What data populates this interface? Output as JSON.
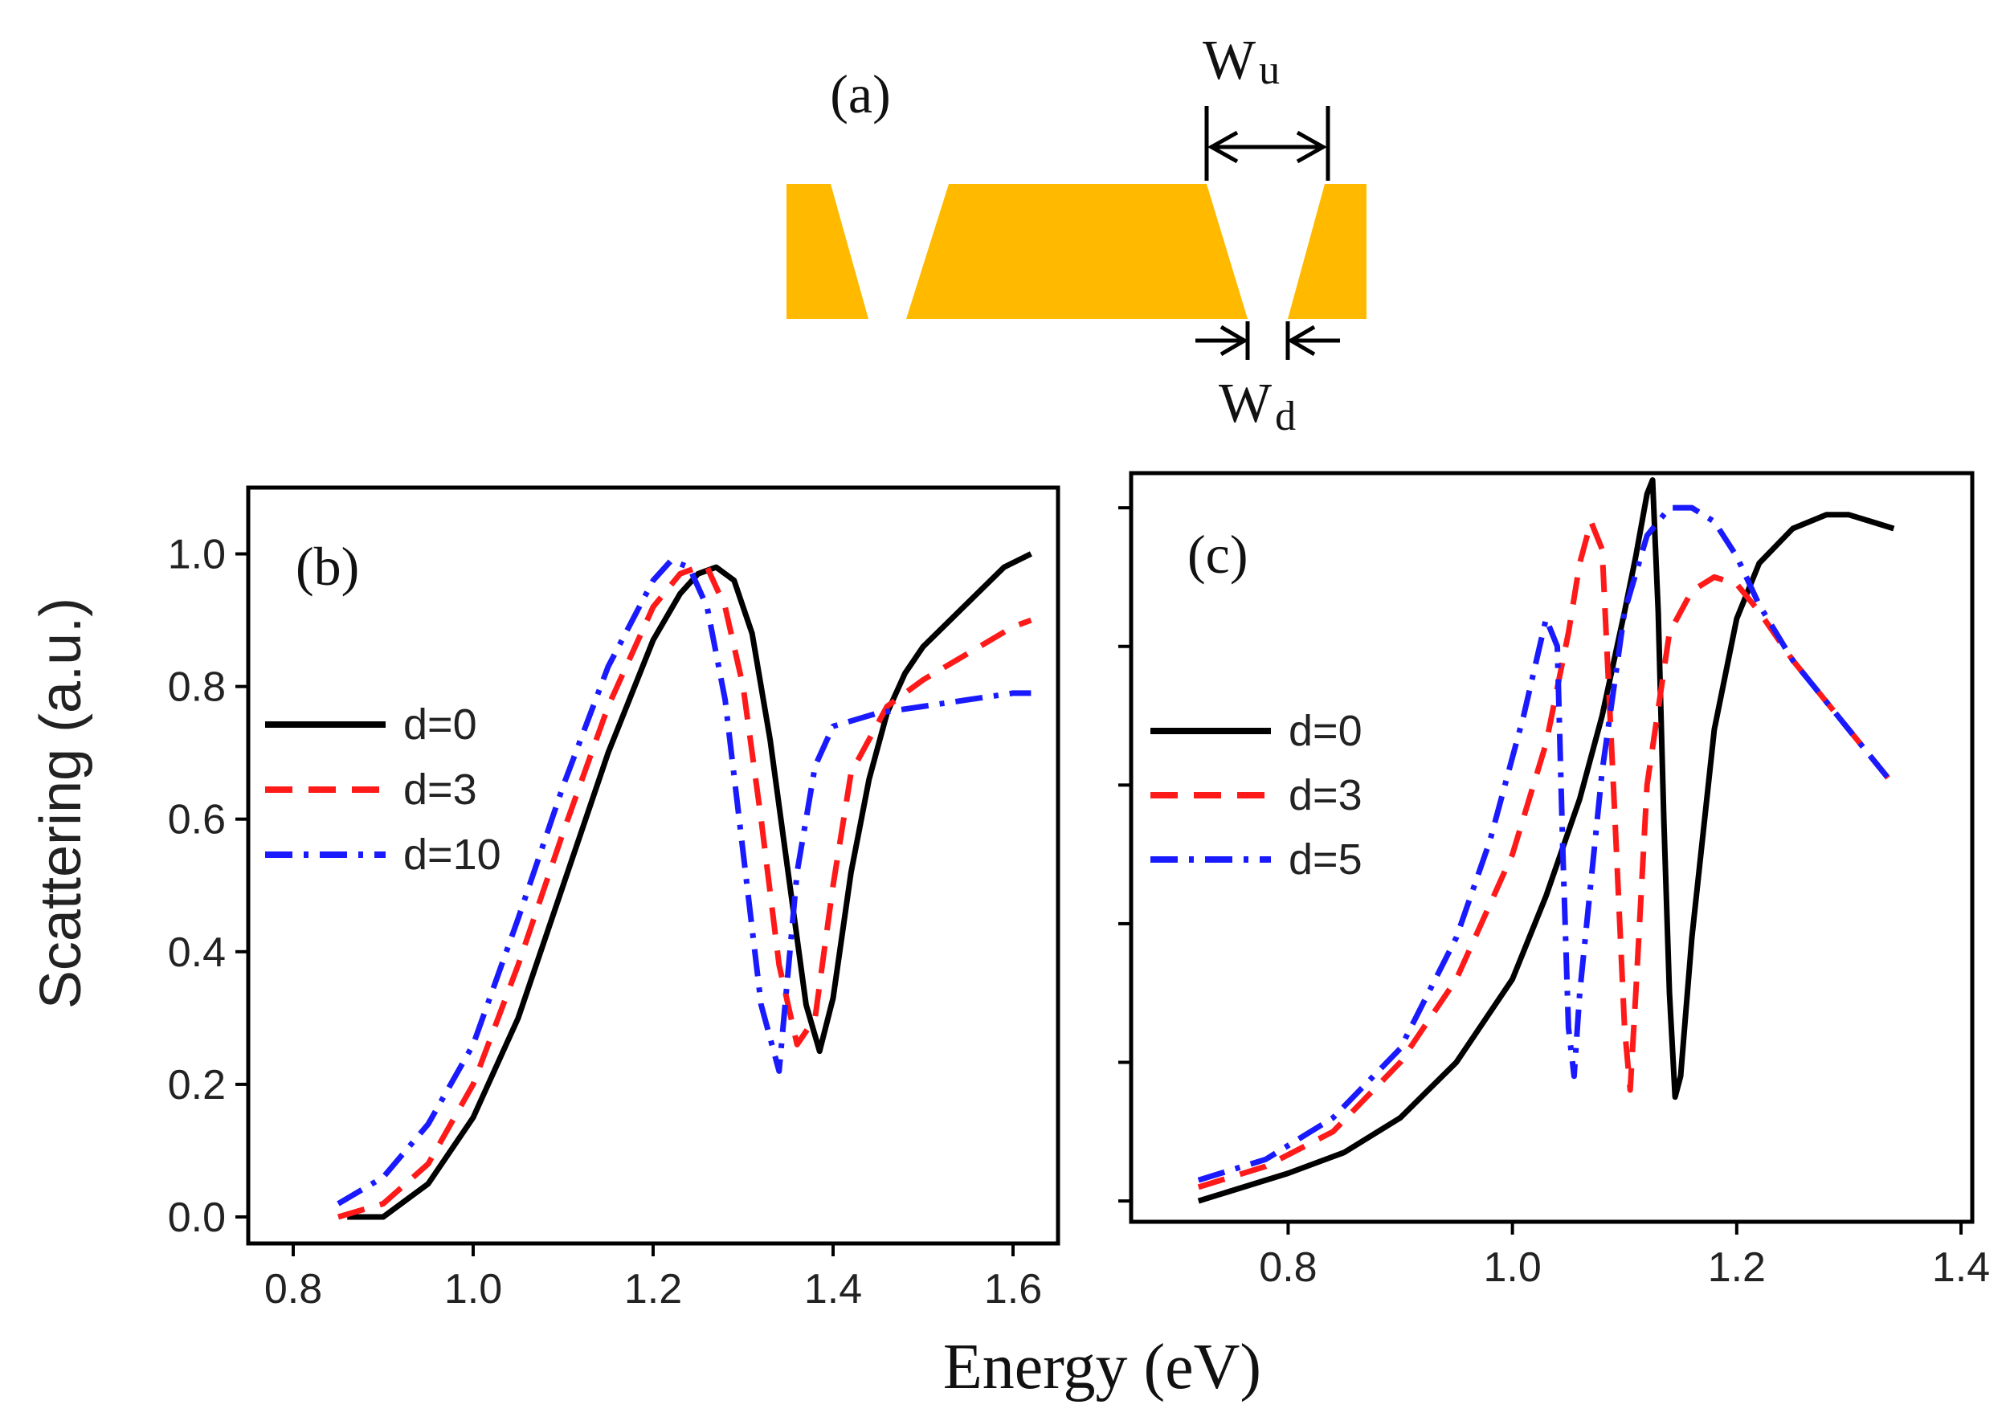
{
  "colors": {
    "gold": "#FFBA00",
    "black": "#000000",
    "red": "#FF1A1A",
    "blue": "#1A1AFF"
  },
  "diagram": {
    "label": "(a)",
    "wu_main": "W",
    "wu_sub": "u",
    "wd_main": "W",
    "wd_sub": "d"
  },
  "chart_data": [
    {
      "type": "line",
      "panel_label": "(b)",
      "xlabel": "Energy (eV)",
      "ylabel": "Scattering (a.u.)",
      "xlim": [
        0.75,
        1.65
      ],
      "ylim": [
        -0.04,
        1.1
      ],
      "xticks": [
        0.8,
        1.0,
        1.2,
        1.4,
        1.6
      ],
      "xtick_labels": [
        "0.8",
        "1.0",
        "1.2",
        "1.4",
        "1.6"
      ],
      "yticks": [
        0.0,
        0.2,
        0.4,
        0.6,
        0.8,
        1.0
      ],
      "ytick_labels": [
        "0.0",
        "0.2",
        "0.4",
        "0.6",
        "0.8",
        "1.0"
      ],
      "legend_position": "left",
      "series": [
        {
          "name": "d=0",
          "color": "#000000",
          "dash": "solid",
          "x": [
            0.86,
            0.9,
            0.95,
            1.0,
            1.05,
            1.1,
            1.15,
            1.2,
            1.23,
            1.25,
            1.27,
            1.29,
            1.31,
            1.33,
            1.35,
            1.37,
            1.385,
            1.4,
            1.42,
            1.44,
            1.46,
            1.48,
            1.5,
            1.53,
            1.56,
            1.59,
            1.62
          ],
          "y": [
            0.0,
            0.0,
            0.05,
            0.15,
            0.3,
            0.5,
            0.7,
            0.87,
            0.94,
            0.97,
            0.98,
            0.96,
            0.88,
            0.72,
            0.52,
            0.32,
            0.25,
            0.33,
            0.52,
            0.66,
            0.76,
            0.82,
            0.86,
            0.9,
            0.94,
            0.98,
            1.0
          ]
        },
        {
          "name": "d=3",
          "color": "#FF1A1A",
          "dash": "dash",
          "x": [
            0.85,
            0.9,
            0.95,
            1.0,
            1.05,
            1.1,
            1.15,
            1.2,
            1.23,
            1.25,
            1.26,
            1.28,
            1.3,
            1.32,
            1.34,
            1.36,
            1.38,
            1.4,
            1.42,
            1.46,
            1.5,
            1.55,
            1.6,
            1.62
          ],
          "y": [
            0.0,
            0.02,
            0.08,
            0.2,
            0.38,
            0.58,
            0.77,
            0.92,
            0.97,
            0.98,
            0.98,
            0.92,
            0.8,
            0.6,
            0.38,
            0.26,
            0.3,
            0.5,
            0.67,
            0.77,
            0.81,
            0.85,
            0.89,
            0.9
          ]
        },
        {
          "name": "d=10",
          "color": "#1A1AFF",
          "dash": "dashdot",
          "x": [
            0.85,
            0.9,
            0.95,
            1.0,
            1.05,
            1.1,
            1.15,
            1.2,
            1.22,
            1.24,
            1.26,
            1.28,
            1.3,
            1.32,
            1.34,
            1.36,
            1.38,
            1.4,
            1.45,
            1.5,
            1.55,
            1.6,
            1.62
          ],
          "y": [
            0.02,
            0.06,
            0.14,
            0.26,
            0.45,
            0.65,
            0.83,
            0.96,
            0.99,
            0.98,
            0.92,
            0.78,
            0.55,
            0.32,
            0.22,
            0.52,
            0.68,
            0.74,
            0.76,
            0.77,
            0.78,
            0.79,
            0.79
          ]
        }
      ]
    },
    {
      "type": "line",
      "panel_label": "(c)",
      "xlabel": "",
      "ylabel": "",
      "xlim": [
        0.66,
        1.41
      ],
      "ylim": [
        -0.03,
        1.05
      ],
      "xticks": [
        0.8,
        1.0,
        1.2,
        1.4
      ],
      "xtick_labels": [
        "0.8",
        "1.0",
        "1.2",
        "1.4"
      ],
      "yticks": [
        0.0,
        0.2,
        0.4,
        0.6,
        0.8,
        1.0
      ],
      "ytick_labels": [],
      "legend_position": "left",
      "series": [
        {
          "name": "d=0",
          "color": "#000000",
          "dash": "solid",
          "x": [
            0.72,
            0.76,
            0.8,
            0.85,
            0.9,
            0.95,
            1.0,
            1.03,
            1.06,
            1.08,
            1.1,
            1.11,
            1.12,
            1.125,
            1.13,
            1.135,
            1.14,
            1.145,
            1.15,
            1.16,
            1.18,
            1.2,
            1.22,
            1.25,
            1.28,
            1.3,
            1.32,
            1.34
          ],
          "y": [
            0.0,
            0.02,
            0.04,
            0.07,
            0.12,
            0.2,
            0.32,
            0.44,
            0.58,
            0.7,
            0.85,
            0.93,
            1.02,
            1.04,
            0.85,
            0.55,
            0.3,
            0.15,
            0.18,
            0.38,
            0.68,
            0.84,
            0.92,
            0.97,
            0.99,
            0.99,
            0.98,
            0.97
          ]
        },
        {
          "name": "d=3",
          "color": "#FF1A1A",
          "dash": "dash",
          "x": [
            0.72,
            0.78,
            0.84,
            0.9,
            0.95,
            1.0,
            1.03,
            1.05,
            1.06,
            1.07,
            1.08,
            1.09,
            1.1,
            1.105,
            1.11,
            1.12,
            1.14,
            1.16,
            1.18,
            1.2,
            1.22,
            1.25,
            1.28,
            1.31,
            1.34
          ],
          "y": [
            0.02,
            0.05,
            0.1,
            0.2,
            0.32,
            0.5,
            0.66,
            0.82,
            0.92,
            0.98,
            0.94,
            0.6,
            0.25,
            0.16,
            0.3,
            0.6,
            0.82,
            0.88,
            0.9,
            0.89,
            0.85,
            0.78,
            0.72,
            0.66,
            0.6
          ]
        },
        {
          "name": "d=5",
          "color": "#1A1AFF",
          "dash": "dashdot",
          "x": [
            0.72,
            0.78,
            0.84,
            0.9,
            0.95,
            0.98,
            1.01,
            1.03,
            1.04,
            1.045,
            1.05,
            1.055,
            1.06,
            1.08,
            1.1,
            1.12,
            1.14,
            1.16,
            1.18,
            1.2,
            1.22,
            1.25,
            1.28,
            1.31,
            1.34
          ],
          "y": [
            0.03,
            0.06,
            0.12,
            0.22,
            0.38,
            0.52,
            0.7,
            0.84,
            0.8,
            0.5,
            0.25,
            0.18,
            0.3,
            0.62,
            0.85,
            0.96,
            1.0,
            1.0,
            0.98,
            0.93,
            0.86,
            0.78,
            0.72,
            0.66,
            0.6
          ]
        }
      ]
    }
  ]
}
